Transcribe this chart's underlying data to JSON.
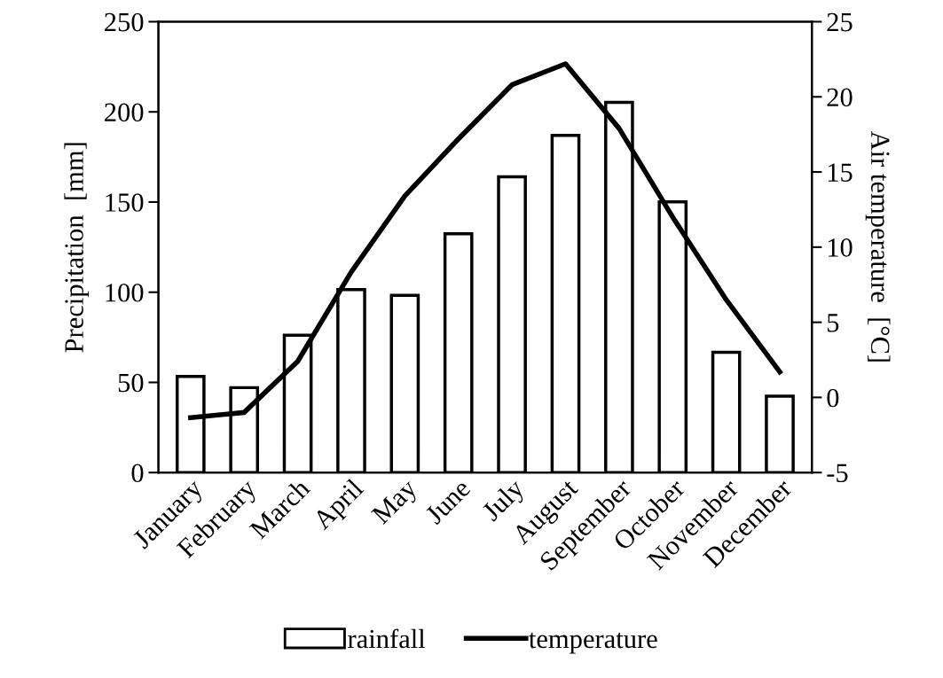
{
  "chart_data": {
    "type": "bar",
    "categories": [
      "January",
      "February",
      "March",
      "April",
      "May",
      "June",
      "July",
      "August",
      "September",
      "October",
      "November",
      "December"
    ],
    "series": [
      {
        "name": "rainfall",
        "color": "#ffffff",
        "values": [
          53.3,
          47.1,
          76.2,
          101.5,
          98.3,
          132.4,
          164,
          187,
          205.3,
          150.1,
          66.7,
          42.4
        ]
      },
      {
        "name": "temperature",
        "type": "line",
        "axis": "y2",
        "color": "#000000",
        "values": [
          -1.35,
          -1.0,
          2.4,
          8.35,
          13.4,
          17.2,
          20.8,
          22.2,
          17.9,
          12.0,
          6.5,
          1.7
        ]
      }
    ],
    "ylabel": "Precipitation  [mm]",
    "y2label": "Air temperature  [°C]",
    "ylim": [
      0,
      250
    ],
    "yticks": [
      0,
      50,
      100,
      150,
      200,
      250
    ],
    "y2lim": [
      -5,
      25
    ],
    "y2ticks": [
      -5,
      0,
      5,
      10,
      15,
      20,
      25
    ],
    "legend": "bottom",
    "marker": "none",
    "line_style": "solid",
    "grid": false
  }
}
